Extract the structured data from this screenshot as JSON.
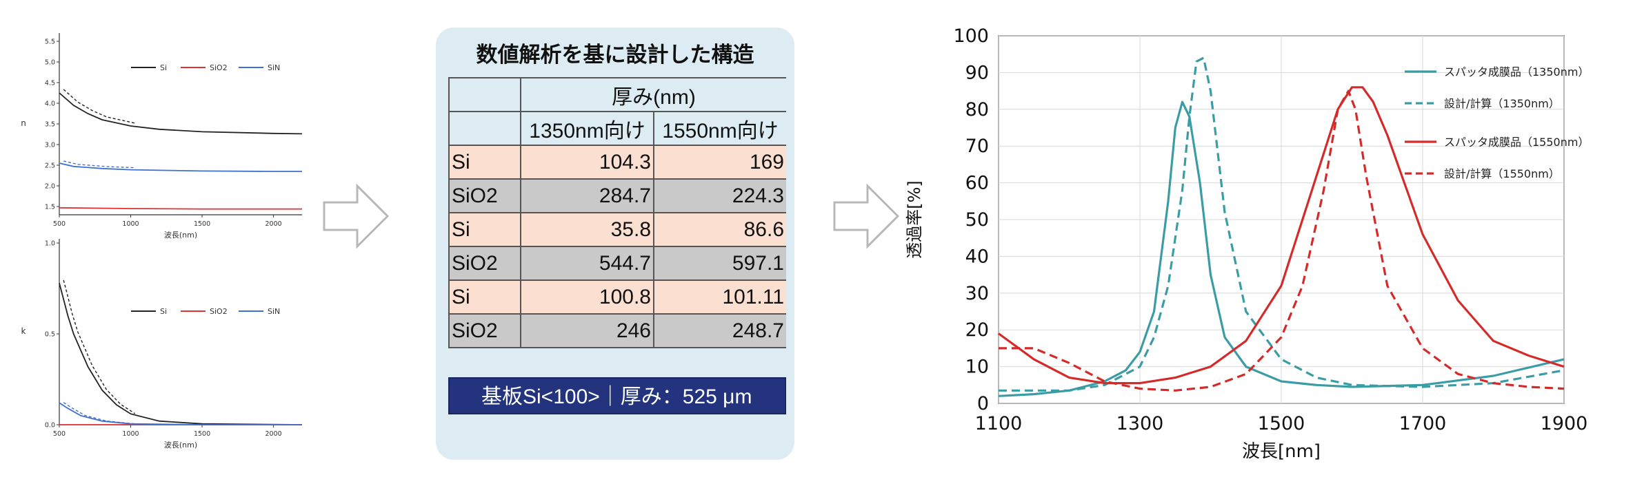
{
  "colors": {
    "si": "#222222",
    "sio2": "#e03030",
    "sin": "#3f6fd0",
    "c1350": "#3a9ca4",
    "c1550": "#d42a2a"
  },
  "structure": {
    "title": "数値解析を基に設計した構造",
    "header_thickness": "厚み(nm)",
    "col_1350": "1350nm向け",
    "col_1550": "1550nm向け",
    "rows": [
      {
        "material": "Si",
        "t1350": "104.3",
        "t1550": "169"
      },
      {
        "material": "SiO2",
        "t1350": "284.7",
        "t1550": "224.3"
      },
      {
        "material": "Si",
        "t1350": "35.8",
        "t1550": "86.6"
      },
      {
        "material": "SiO2",
        "t1350": "544.7",
        "t1550": "597.1"
      },
      {
        "material": "Si",
        "t1350": "100.8",
        "t1550": "101.11"
      },
      {
        "material": "SiO2",
        "t1350": "246",
        "t1550": "248.7"
      }
    ],
    "substrate": "基板Si<100>｜厚み：525 μm"
  },
  "chart_data": [
    {
      "type": "line",
      "title": "",
      "xlabel": "波長(nm)",
      "ylabel": "n",
      "xlim": [
        500,
        2200
      ],
      "ylim": [
        1.3,
        5.6
      ],
      "xticks": [
        "500",
        "1000",
        "1500",
        "2000"
      ],
      "yticks": [
        "1.5",
        "2.0",
        "2.5",
        "3.0",
        "3.5",
        "4.0",
        "4.5",
        "5.0",
        "5.5"
      ],
      "legend": [
        "Si",
        "SiO2",
        "SiN"
      ],
      "legend_position": "top-right",
      "series": [
        {
          "name": "Si",
          "x": [
            500,
            600,
            700,
            800,
            1000,
            1200,
            1500,
            2000,
            2200
          ],
          "y": [
            4.25,
            3.95,
            3.75,
            3.6,
            3.45,
            3.37,
            3.31,
            3.27,
            3.26
          ]
        },
        {
          "name": "SiO2",
          "x": [
            500,
            1000,
            1500,
            2000,
            2200
          ],
          "y": [
            1.47,
            1.45,
            1.44,
            1.44,
            1.44
          ]
        },
        {
          "name": "SiN",
          "x": [
            500,
            600,
            800,
            1000,
            1500,
            2000,
            2200
          ],
          "y": [
            2.55,
            2.47,
            2.42,
            2.39,
            2.36,
            2.35,
            2.35
          ]
        }
      ]
    },
    {
      "type": "line",
      "title": "",
      "xlabel": "波長(nm)",
      "ylabel": "k",
      "xlim": [
        500,
        2200
      ],
      "ylim": [
        0,
        1.0
      ],
      "xticks": [
        "500",
        "1000",
        "1500",
        "2000"
      ],
      "yticks": [
        "0.0",
        "0.5",
        "1.0"
      ],
      "legend": [
        "Si",
        "SiO2",
        "SiN"
      ],
      "legend_position": "top-right",
      "series": [
        {
          "name": "Si",
          "x": [
            500,
            520,
            560,
            600,
            700,
            800,
            900,
            1000,
            1200,
            1500,
            2200
          ],
          "y": [
            0.78,
            0.72,
            0.6,
            0.5,
            0.32,
            0.19,
            0.11,
            0.06,
            0.02,
            0.005,
            0.0
          ]
        },
        {
          "name": "SiO2",
          "x": [
            500,
            2200
          ],
          "y": [
            0,
            0
          ]
        },
        {
          "name": "SiN",
          "x": [
            500,
            560,
            650,
            800,
            1000,
            1500,
            2200
          ],
          "y": [
            0.12,
            0.09,
            0.05,
            0.02,
            0.005,
            0.0,
            0.0
          ]
        }
      ]
    },
    {
      "type": "line",
      "title": "",
      "xlabel": "波長[nm]",
      "ylabel": "透過率[%]",
      "xlim": [
        1100,
        1900
      ],
      "ylim": [
        0,
        100
      ],
      "xticks": [
        "1100",
        "1300",
        "1500",
        "1700",
        "1900"
      ],
      "yticks": [
        "0",
        "10",
        "20",
        "30",
        "40",
        "50",
        "60",
        "70",
        "80",
        "90",
        "100"
      ],
      "grid": true,
      "legend_position": "top-right",
      "series": [
        {
          "name": "スパッタ成膜品（1350nm）",
          "style": "solid",
          "color": "#3a9ca4",
          "x": [
            1100,
            1150,
            1200,
            1250,
            1280,
            1300,
            1320,
            1340,
            1350,
            1360,
            1370,
            1385,
            1400,
            1420,
            1450,
            1500,
            1550,
            1600,
            1700,
            1800,
            1900
          ],
          "y": [
            2,
            2.5,
            3.5,
            6,
            9,
            14,
            25,
            55,
            75,
            82,
            78,
            60,
            35,
            18,
            10,
            6,
            5,
            4.5,
            5,
            7.5,
            12
          ]
        },
        {
          "name": "設計/計算（1350nm）",
          "style": "dashed",
          "color": "#3a9ca4",
          "x": [
            1100,
            1200,
            1250,
            1300,
            1320,
            1340,
            1360,
            1370,
            1380,
            1390,
            1400,
            1420,
            1450,
            1500,
            1550,
            1600,
            1700,
            1800,
            1900
          ],
          "y": [
            3.5,
            3.5,
            5,
            10,
            18,
            32,
            58,
            78,
            93,
            94,
            85,
            52,
            25,
            12,
            7,
            5,
            4.5,
            5.5,
            9
          ]
        },
        {
          "name": "スパッタ成膜品（1550nm）",
          "style": "solid",
          "color": "#d42a2a",
          "x": [
            1100,
            1150,
            1200,
            1250,
            1300,
            1350,
            1400,
            1450,
            1500,
            1550,
            1580,
            1600,
            1615,
            1630,
            1650,
            1700,
            1750,
            1800,
            1850,
            1900
          ],
          "y": [
            19,
            12,
            7,
            5.5,
            5.5,
            7,
            10,
            17,
            32,
            62,
            80,
            86,
            86,
            82,
            73,
            46,
            28,
            17,
            13,
            10
          ]
        },
        {
          "name": "設計/計算（1550nm）",
          "style": "dashed",
          "color": "#d42a2a",
          "x": [
            1100,
            1150,
            1200,
            1250,
            1300,
            1350,
            1400,
            1450,
            1500,
            1530,
            1560,
            1580,
            1595,
            1605,
            1620,
            1650,
            1700,
            1750,
            1800,
            1850,
            1900
          ],
          "y": [
            15,
            15,
            11,
            6,
            4,
            3.5,
            4.5,
            8,
            18,
            32,
            58,
            80,
            85,
            80,
            62,
            32,
            15,
            8,
            5.5,
            4.5,
            4
          ]
        }
      ]
    }
  ]
}
